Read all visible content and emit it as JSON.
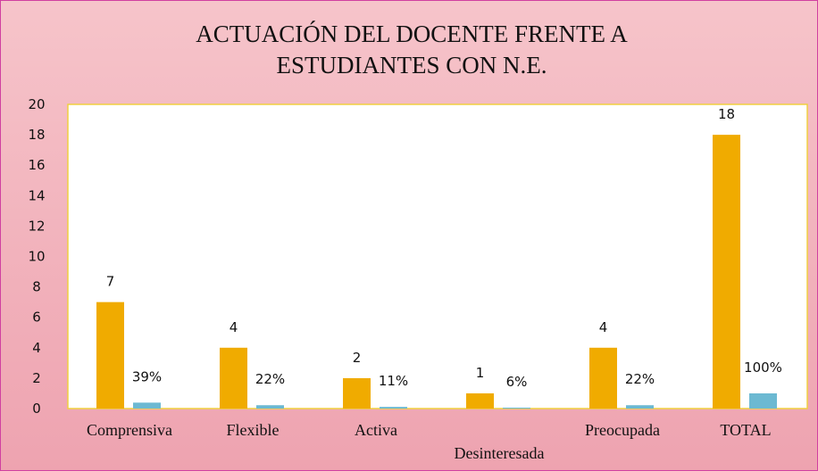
{
  "chart_data": {
    "type": "bar",
    "title": "ACTUACIÓN DEL DOCENTE FRENTE A ESTUDIANTES CON N.E.",
    "categories": [
      "Comprensiva",
      "Flexible",
      "Activa",
      "Desinteresada",
      "Preocupada",
      "TOTAL"
    ],
    "series": [
      {
        "color": "#f0ab00",
        "values": [
          7,
          4,
          2,
          1,
          4,
          18
        ]
      },
      {
        "color": "#6cb9d2",
        "values": [
          0.39,
          0.22,
          0.11,
          0.06,
          0.22,
          1
        ],
        "value_labels": [
          "39%",
          "22%",
          "11%",
          "6%",
          "22%",
          "100%"
        ]
      }
    ],
    "ylim": [
      0,
      20
    ],
    "yticks": [
      0,
      2,
      4,
      6,
      8,
      10,
      12,
      14,
      16,
      18,
      20
    ],
    "grid": false
  }
}
